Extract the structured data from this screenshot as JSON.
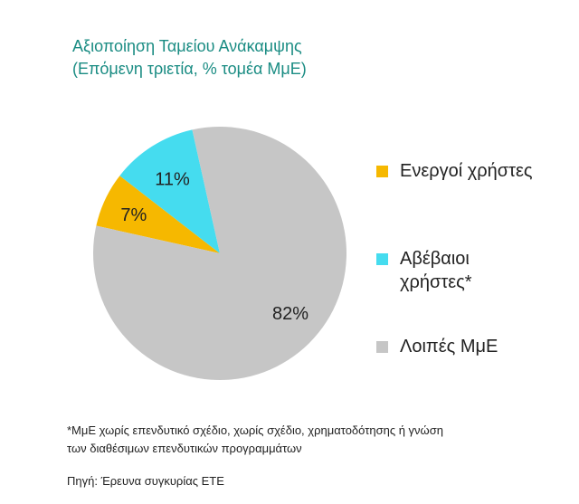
{
  "header": {
    "title": "Αξιοποίηση Ταμείου Ανάκαμψης",
    "subtitle": "(Επόμενη τριετία, % τομέα ΜμΕ)"
  },
  "chart_data": {
    "type": "pie",
    "title": "Αξιοποίηση Ταμείου Ανάκαμψης",
    "subtitle": "(Επόμενη τριετία, % τομέα ΜμΕ)",
    "slices": [
      {
        "label": "Ενεργοί χρήστες",
        "value": 7,
        "display": "7%",
        "color": "#f6b800"
      },
      {
        "label": "Αβέβαιοι χρήστες*",
        "value": 11,
        "display": "11%",
        "color": "#45dcef"
      },
      {
        "label": "Λοιπές ΜμΕ",
        "value": 82,
        "display": "82%",
        "color": "#c6c6c6"
      }
    ],
    "legend_position": "right"
  },
  "legend": {
    "items": [
      {
        "lines": [
          "Ενεργοί χρήστες"
        ],
        "color": "#f6b800"
      },
      {
        "lines": [
          "Αβέβαιοι",
          "χρήστες*"
        ],
        "color": "#45dcef"
      },
      {
        "lines": [
          "Λοιπές ΜμΕ"
        ],
        "color": "#c6c6c6"
      }
    ]
  },
  "footnote": {
    "line1": "*ΜμΕ χωρίς επενδυτικό σχέδιο, χωρίς σχέδιο, χρηματοδότησης ή γνώση",
    "line2": "των  διαθέσιμων επενδυτικών προγραμμάτων"
  },
  "source": "Πηγή: Έρευνα συγκυρίας ΕΤΕ"
}
